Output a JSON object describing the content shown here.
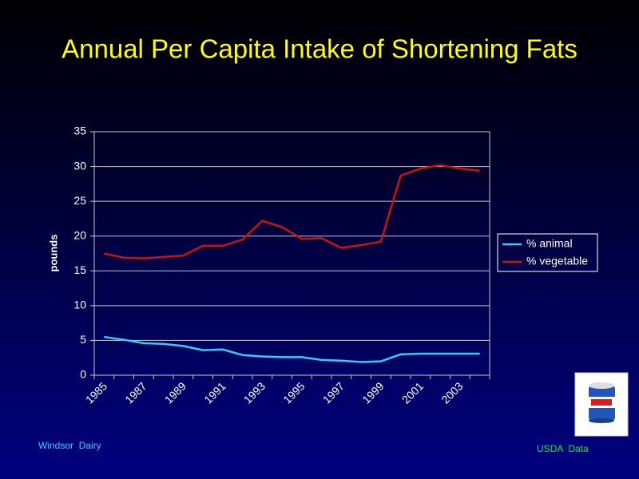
{
  "chart_data": {
    "type": "line",
    "title": "Annual Per Capita Intake of Shortening Fats",
    "y_label": "pounds",
    "categories": [
      "1985",
      null,
      "1987",
      null,
      "1989",
      null,
      "1991",
      null,
      "1993",
      null,
      "1995",
      null,
      "1997",
      null,
      "1999",
      null,
      "2001",
      null,
      "2003",
      null
    ],
    "series": [
      {
        "name": "% animal",
        "color": "#33ccff",
        "values": [
          5.5,
          5.1,
          4.6,
          4.5,
          4.2,
          3.6,
          3.7,
          2.9,
          2.7,
          2.6,
          2.6,
          2.2,
          2.1,
          1.9,
          2.0,
          3.0,
          3.1,
          3.1,
          3.1,
          3.1
        ]
      },
      {
        "name": "% vegetable",
        "color": "#cc1111",
        "values": [
          17.5,
          16.9,
          16.8,
          17.0,
          17.2,
          18.6,
          18.6,
          19.5,
          22.2,
          21.3,
          19.6,
          19.7,
          18.3,
          18.7,
          19.2,
          28.7,
          29.7,
          30.2,
          29.7,
          29.4
        ]
      }
    ],
    "ylim": [
      0,
      35
    ],
    "yticks": [
      0,
      5,
      10,
      15,
      20,
      25,
      30,
      35
    ],
    "grid": true,
    "legend": "right",
    "credit": "Windsor  Dairy",
    "source": "USDA  Data"
  }
}
